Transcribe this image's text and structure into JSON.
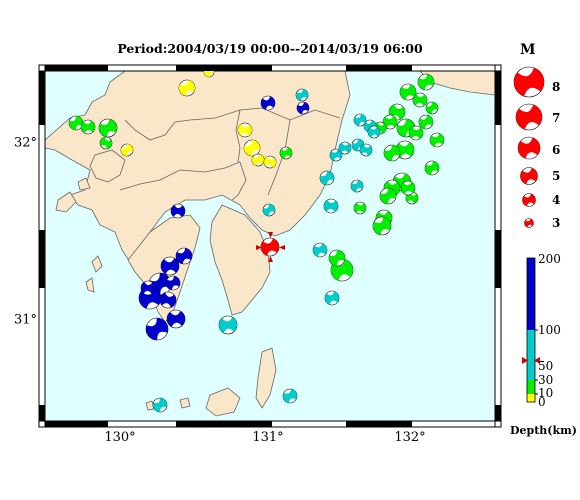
{
  "title": "Period:2004/03/19 00:00--2014/03/19 06:00",
  "axes": {
    "lon_ticks": [
      "130°",
      "131°",
      "132°"
    ],
    "lat_ticks": [
      "31°",
      "32°"
    ]
  },
  "magnitude_legend": {
    "header": "M",
    "items": [
      "8",
      "7",
      "6",
      "5",
      "4",
      "3"
    ]
  },
  "depth_scale": {
    "title": "Depth(km)",
    "ticks": [
      "200",
      "100",
      "50",
      "30",
      "10",
      "0"
    ],
    "colors": {
      "shallow": "#ffff00",
      "mid": "#00ee00",
      "intermediate": "#00cccc",
      "deep": "#0000cc"
    },
    "highlight_depth_km": 58
  },
  "highlighted_event": {
    "color": "#ff0000",
    "marker": "red-triangle-icon"
  },
  "colors": {
    "sea": "#e0ffff",
    "land": "#fae6c8",
    "coast": "#555555"
  }
}
